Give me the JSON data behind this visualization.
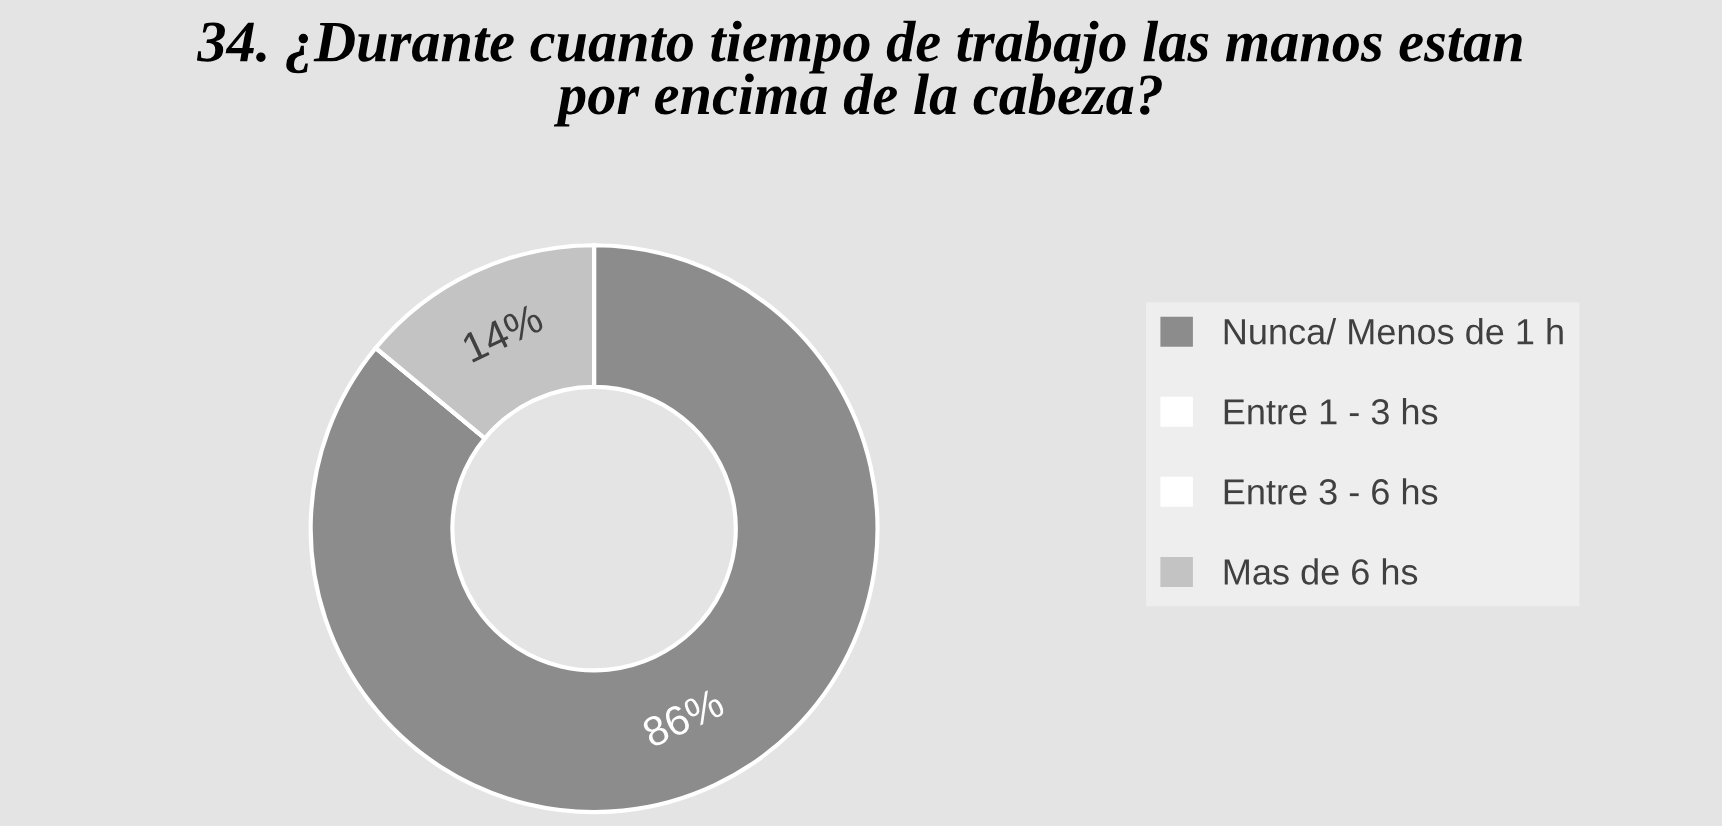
{
  "chart_data": {
    "type": "donut",
    "title": "34. ¿Durante cuanto tiempo de trabajo las manos estan\npor encima de la cabeza?",
    "categories": [
      "Nunca/ Menos de 1 h",
      "Entre 1 - 3 hs",
      "Entre 3 - 6 hs",
      "Mas de 6 hs"
    ],
    "values": [
      86,
      0,
      0,
      14
    ],
    "colors": [
      "#8c8c8c",
      "#ffffff",
      "#ffffff",
      "#c3c3c3"
    ],
    "value_labels": [
      "86%",
      null,
      null,
      "14%"
    ],
    "legend": "right"
  }
}
